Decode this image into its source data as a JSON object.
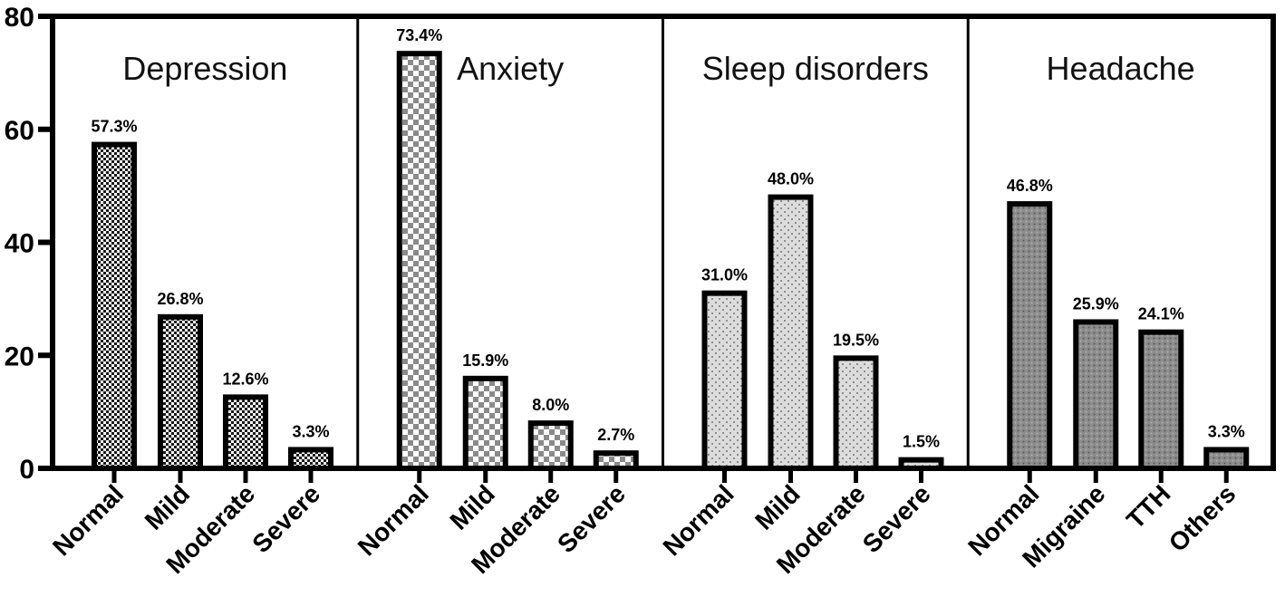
{
  "chart_data": {
    "type": "bar",
    "ylim": [
      0,
      80
    ],
    "yticks": [
      0,
      20,
      40,
      60,
      80
    ],
    "grid": false,
    "panels": [
      {
        "title": "Depression",
        "pattern": "checker-fine",
        "categories": [
          "Normal",
          "Mild",
          "Moderate",
          "Severe"
        ],
        "values": [
          57.3,
          26.8,
          12.6,
          3.3
        ],
        "labels": [
          "57.3%",
          "26.8%",
          "12.6%",
          "3.3%"
        ]
      },
      {
        "title": "Anxiety",
        "pattern": "checker-coarse",
        "categories": [
          "Normal",
          "Mild",
          "Moderate",
          "Severe"
        ],
        "values": [
          73.4,
          15.9,
          8.0,
          2.7
        ],
        "labels": [
          "73.4%",
          "15.9%",
          "8.0%",
          "2.7%"
        ]
      },
      {
        "title": "Sleep disorders",
        "pattern": "dots-light",
        "categories": [
          "Normal",
          "Mild",
          "Moderate",
          "Severe"
        ],
        "values": [
          31.0,
          48.0,
          19.5,
          1.5
        ],
        "labels": [
          "31.0%",
          "48.0%",
          "19.5%",
          "1.5%"
        ]
      },
      {
        "title": "Headache",
        "pattern": "dots-dark",
        "categories": [
          "Normal",
          "Migraine",
          "TTH",
          "Others"
        ],
        "values": [
          46.8,
          25.9,
          24.1,
          3.3
        ],
        "labels": [
          "46.8%",
          "25.9%",
          "24.1%",
          "3.3%"
        ]
      }
    ]
  }
}
